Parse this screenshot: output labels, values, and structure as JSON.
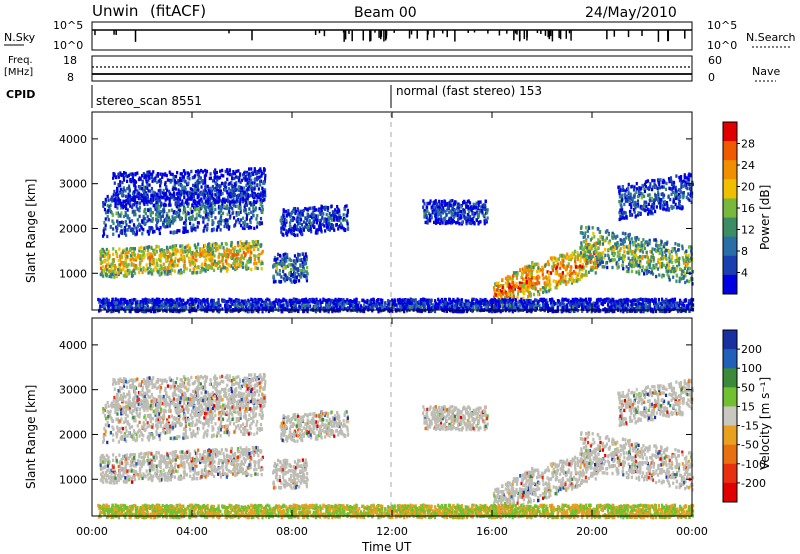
{
  "header": {
    "station": "Unwin",
    "mode": "(fitACF)",
    "beam": "Beam 00",
    "date": "24/May/2010"
  },
  "top_panels": {
    "nsky_label": "N.Sky",
    "nsky_ticks": [
      "10^5",
      "10^0"
    ],
    "nsearch_label": "N.Search",
    "nsearch_ticks": [
      "10^5",
      "10^0"
    ],
    "freq_label": "Freq.",
    "freq_unit": "[MHz]",
    "freq_ticks": [
      "18",
      "8"
    ],
    "nave_label": "Nave",
    "nave_ticks": [
      "60",
      "0"
    ],
    "cpid_label": "CPID",
    "cpid_segments": [
      {
        "label": "stereo_scan 8551",
        "start_hour": 0
      },
      {
        "label": "normal (fast stereo) 153",
        "start_hour": 12
      }
    ]
  },
  "colors": {
    "power_scale": [
      "#0000e0",
      "#1a3fb0",
      "#2a6ea8",
      "#3c8c64",
      "#78b83c",
      "#f0c000",
      "#f09000",
      "#f05a00",
      "#e00000"
    ],
    "velocity_scale": [
      "#1830a0",
      "#2060b8",
      "#3a8a3a",
      "#70c030",
      "#c8c8c0",
      "#e8a020",
      "#e87010",
      "#e83010",
      "#e00000"
    ],
    "ground_scatter": "#bdbdb5"
  },
  "chart_data": [
    {
      "type": "heatmap",
      "panel": "power",
      "ylabel": "Slant Range [km]",
      "x_range_hours": [
        0,
        24
      ],
      "ylim": [
        180,
        4600
      ],
      "yticks": [
        1000,
        2000,
        3000,
        4000
      ],
      "colorbar": {
        "label": "Power [dB]",
        "ticks": [
          "28",
          "24",
          "20",
          "16",
          "12",
          "8",
          "4"
        ],
        "range": [
          0,
          32
        ]
      },
      "echo_regions": [
        {
          "t0": 0.3,
          "t1": 6.8,
          "r_center": [
            1250,
            1450
          ],
          "r_width": 320,
          "power": 22
        },
        {
          "t0": 0.4,
          "t1": 6.8,
          "r_center": [
            2300,
            2500
          ],
          "r_width": 450,
          "power": 10
        },
        {
          "t0": 0.8,
          "t1": 6.9,
          "r_center": [
            2900,
            3000
          ],
          "r_width": 380,
          "power": 6
        },
        {
          "t0": 7.2,
          "t1": 8.6,
          "r_center": [
            1150,
            1150
          ],
          "r_width": 320,
          "power": 12
        },
        {
          "t0": 7.5,
          "t1": 10.2,
          "r_center": [
            2150,
            2300
          ],
          "r_width": 300,
          "power": 8
        },
        {
          "t0": 13.2,
          "t1": 15.8,
          "r_center": [
            2400,
            2400
          ],
          "r_width": 260,
          "power": 8
        },
        {
          "t0": 16.0,
          "t1": 17.6,
          "r_center": [
            480,
            1000
          ],
          "r_width": 300,
          "power": 26
        },
        {
          "t0": 17.2,
          "t1": 20.3,
          "r_center": [
            800,
            1400
          ],
          "r_width": 360,
          "power": 25
        },
        {
          "t0": 19.5,
          "t1": 24.0,
          "r_center": [
            1700,
            1200
          ],
          "r_width": 420,
          "power": 17
        },
        {
          "t0": 21.0,
          "t1": 24.0,
          "r_center": [
            2600,
            2900
          ],
          "r_width": 380,
          "power": 9
        },
        {
          "t0": 0.2,
          "t1": 24.0,
          "r_center": [
            300,
            300
          ],
          "r_width": 160,
          "power": 6
        }
      ]
    },
    {
      "type": "heatmap",
      "panel": "velocity",
      "ylabel": "Slant Range [km]",
      "x_range_hours": [
        0,
        24
      ],
      "ylim": [
        180,
        4600
      ],
      "yticks": [
        1000,
        2000,
        3000,
        4000
      ],
      "xticks": [
        "00:00",
        "04:00",
        "08:00",
        "12:00",
        "16:00",
        "20:00",
        "00:00"
      ],
      "xlabel": "Time UT",
      "colorbar": {
        "label": "Velocity [m s⁻¹]",
        "ticks": [
          "200",
          "100",
          "50",
          "15",
          "-15",
          "-50",
          "-100",
          "-200"
        ],
        "range": [
          -250,
          250
        ]
      },
      "note": "ground scatter drawn in grey, same echo regions as power panel"
    }
  ]
}
